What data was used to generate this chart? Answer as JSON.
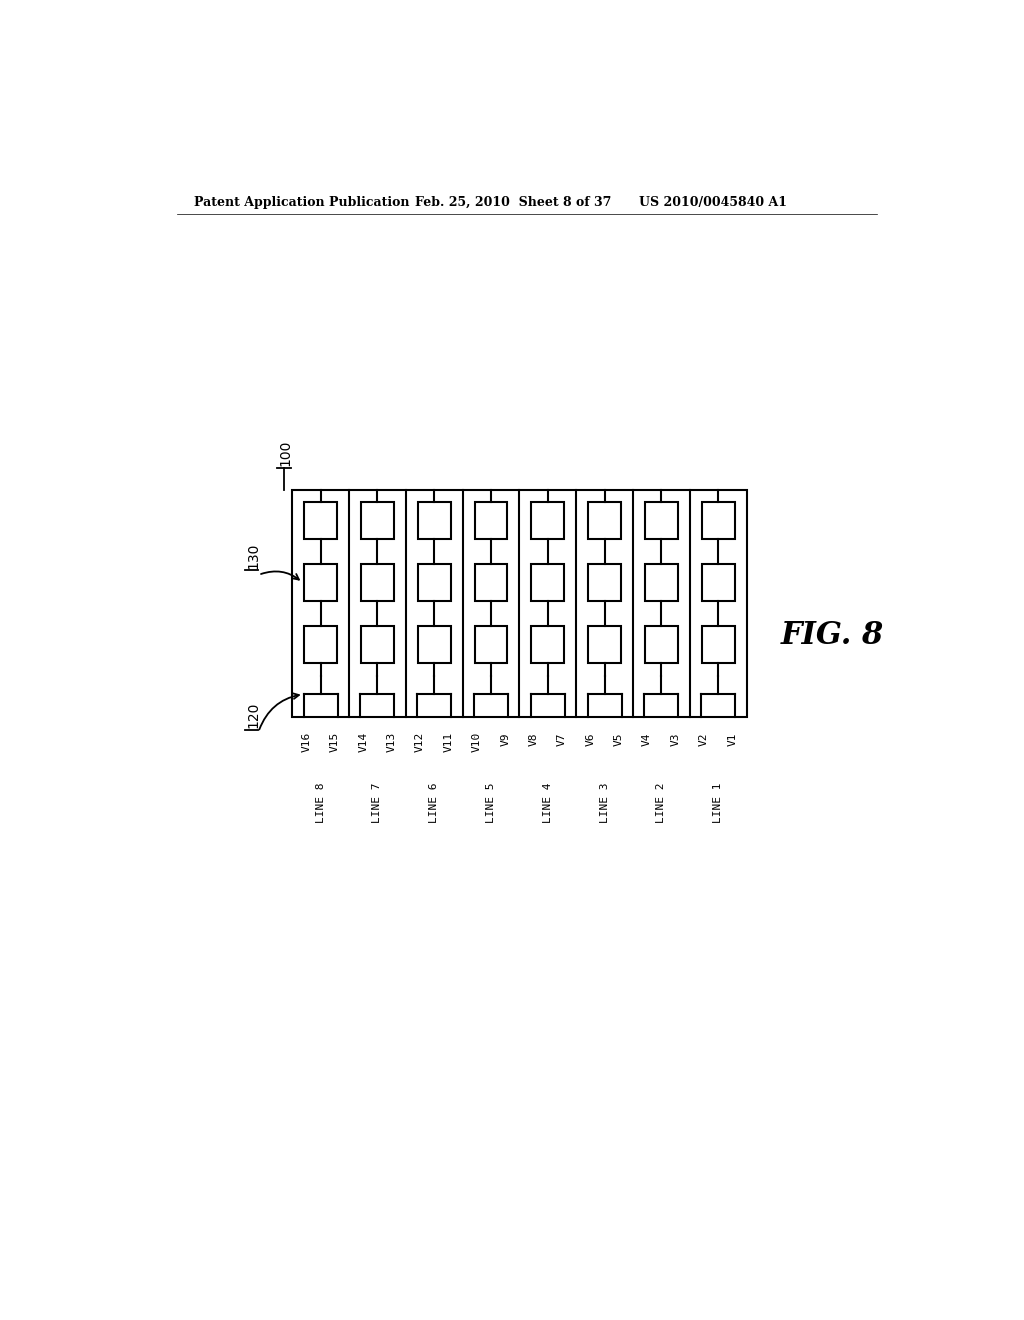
{
  "title_left": "Patent Application Publication",
  "title_mid": "Feb. 25, 2010  Sheet 8 of 37",
  "title_right": "US 2010/0045840 A1",
  "fig_label": "FIG. 8",
  "num_cols": 8,
  "num_rows": 3,
  "label_100": "100",
  "label_130": "130",
  "label_120": "120",
  "v_labels": [
    "V16",
    "V15",
    "V14",
    "V13",
    "V12",
    "V11",
    "V10",
    "V9",
    "V8",
    "V7",
    "V6",
    "V5",
    "V4",
    "V3",
    "V2",
    "V1"
  ],
  "line_labels": [
    "LINE 8",
    "LINE 7",
    "LINE 6",
    "LINE 5",
    "LINE 4",
    "LINE 3",
    "LINE 2",
    "LINE 1"
  ],
  "bg_color": "#ffffff",
  "line_color": "#000000",
  "font_size_header": 9,
  "font_size_label": 10,
  "font_size_fig": 22
}
